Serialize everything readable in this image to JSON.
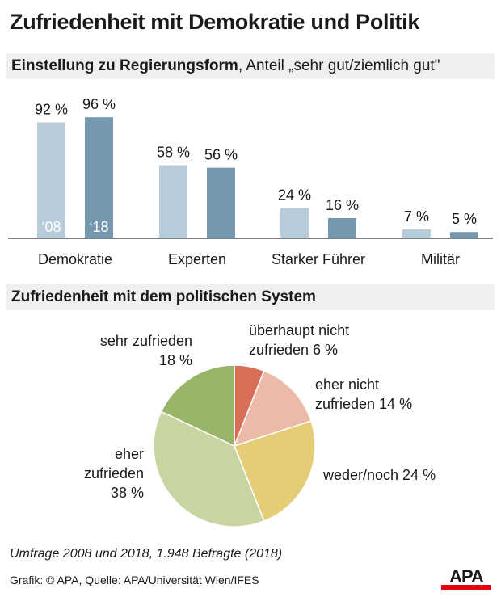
{
  "title": "Zufriedenheit mit Demokratie und Politik",
  "section1": {
    "title_bold": "Einstellung zu Regierungsform",
    "title_rest": ", Anteil „sehr gut/ziemlich gut\""
  },
  "section2": {
    "title": "Zufriedenheit mit dem politischen System"
  },
  "chart_data": [
    {
      "type": "bar",
      "categories": [
        "Demokratie",
        "Experten",
        "Starker Führer",
        "Militär"
      ],
      "series": [
        {
          "name": "‘08",
          "values": [
            92,
            58,
            24,
            7
          ],
          "color": "#b7cbd9"
        },
        {
          "name": "‘18",
          "values": [
            96,
            56,
            16,
            5
          ],
          "color": "#7697b0"
        }
      ],
      "data_labels": [
        [
          "92 %",
          "58 %",
          "24 %",
          "7 %"
        ],
        [
          "96 %",
          "56 %",
          "16 %",
          "5 %"
        ]
      ],
      "ylim": [
        0,
        100
      ],
      "grid": false
    },
    {
      "type": "pie",
      "slices": [
        {
          "label": "überhaupt nicht zufrieden 6 %",
          "lines": [
            "überhaupt nicht",
            "zufrieden 6 %"
          ],
          "value": 6,
          "color": "#d96e58"
        },
        {
          "label": "eher nicht zufrieden 14 %",
          "lines": [
            "eher nicht",
            "zufrieden 14 %"
          ],
          "value": 14,
          "color": "#ebbba7"
        },
        {
          "label": "weder/noch 24 %",
          "lines": [
            "weder/noch 24 %"
          ],
          "value": 24,
          "color": "#e5cd78"
        },
        {
          "label": "eher zufrieden 38 %",
          "lines": [
            "eher",
            "zufrieden",
            "38 %"
          ],
          "value": 38,
          "color": "#c9d5a0"
        },
        {
          "label": "sehr zufrieden 18 %",
          "lines": [
            "sehr zufrieden",
            "18 %"
          ],
          "value": 18,
          "color": "#98b56a"
        }
      ]
    }
  ],
  "footer": {
    "note": "Umfrage 2008 und 2018, 1.948 Befragte (2018)",
    "source": "Grafik: © APA, Quelle: APA/Universität Wien/IFES",
    "logo": "APA"
  }
}
